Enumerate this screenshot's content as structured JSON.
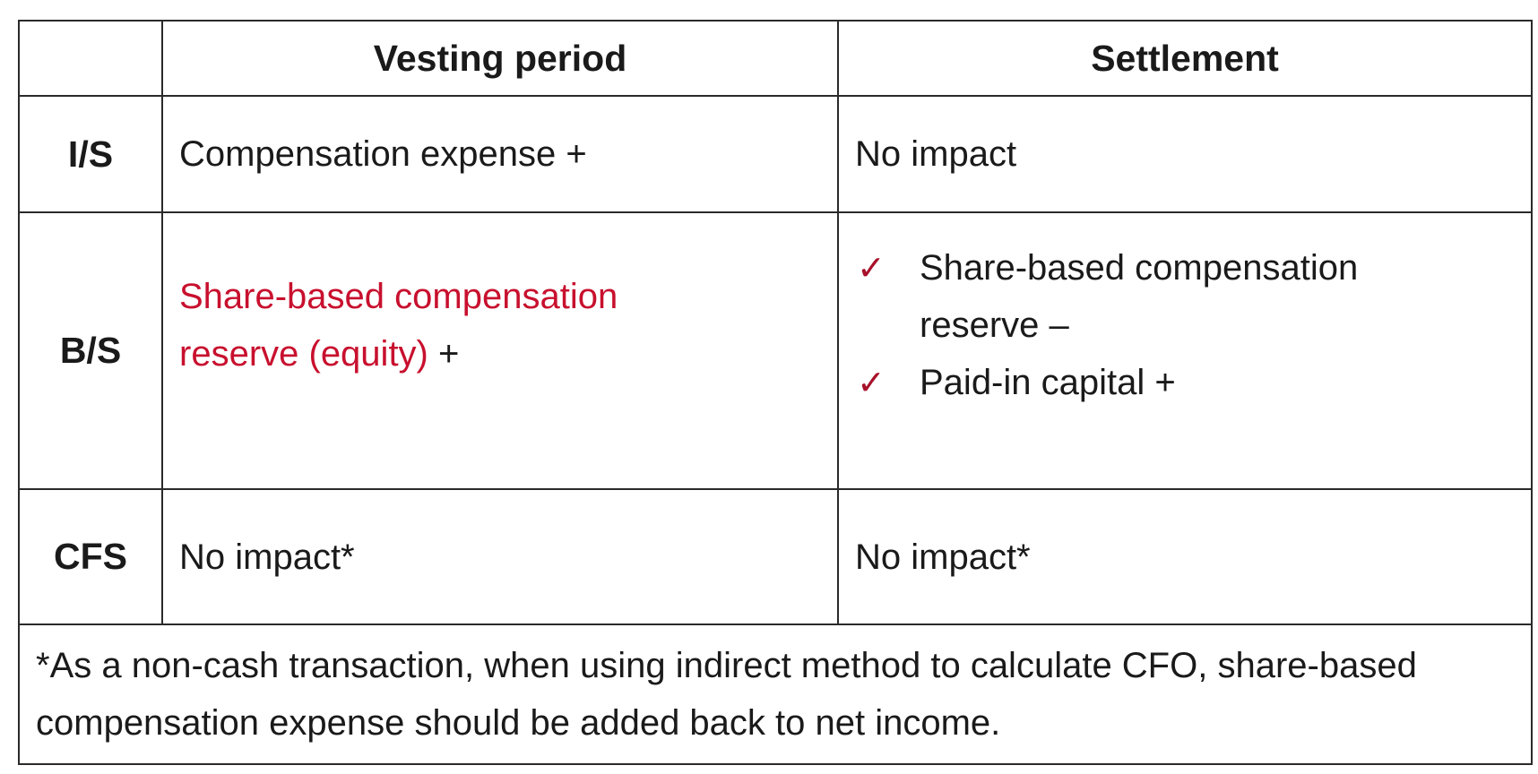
{
  "table": {
    "headers": [
      "",
      "Vesting period",
      "Settlement"
    ],
    "rows": [
      {
        "label": "I/S",
        "vesting": "Compensation expense +",
        "settlement": "No impact"
      },
      {
        "label": "B/S",
        "vesting_highlight": "Share-based compensation reserve (equity)",
        "vesting_suffix": " +",
        "settlement_items": [
          "Share-based compensation reserve –",
          "Paid-in capital +"
        ]
      },
      {
        "label": "CFS",
        "vesting": "No impact*",
        "settlement": "No impact*"
      }
    ],
    "footnote": "*As a non-cash transaction, when using indirect method to calculate CFO, share-based compensation expense should be added back to net income."
  },
  "colors": {
    "highlight": "#c8102e",
    "check": "#a8102a",
    "border": "#2a2a2a"
  },
  "icons": {
    "check": "✓"
  }
}
